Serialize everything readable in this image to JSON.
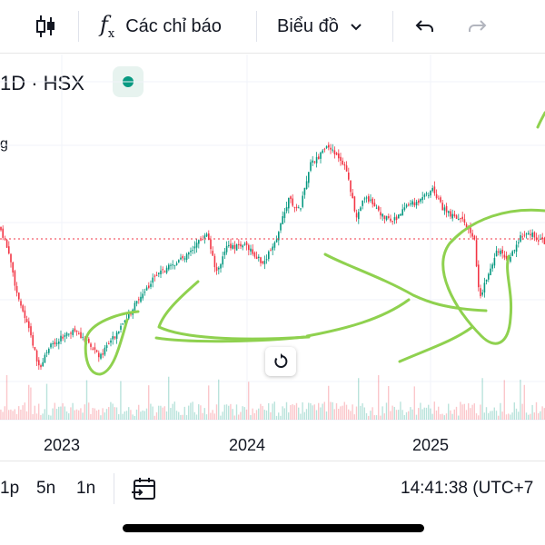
{
  "toolbar": {
    "indicators_label": "Các chỉ báo",
    "chart_type_label": "Biểu đồ"
  },
  "symbol": {
    "interval_exchange": "1D · HSX",
    "legend_fragment": "g"
  },
  "chart_data": {
    "type": "candlestick",
    "x_tick_labels": [
      "2023",
      "2024",
      "2025"
    ],
    "price_line": "dotted-red",
    "overlay": "hand-drawn-green-annotations",
    "colors": {
      "up": "#089981",
      "down": "#f23645",
      "annotation": "#8fd14f",
      "price_line": "#f23645"
    }
  },
  "bottombar": {
    "ranges": [
      "1p",
      "5n",
      "1n"
    ],
    "clock": "14:41:38 (UTC+7"
  }
}
